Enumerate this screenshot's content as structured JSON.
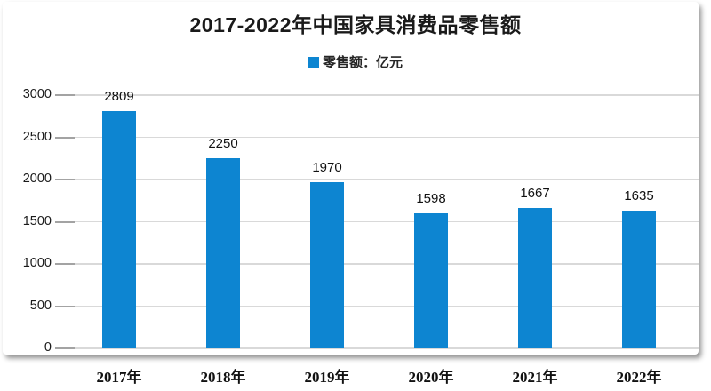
{
  "chart_data": {
    "type": "bar",
    "title": "2017-2022年中国家具消费品零售额",
    "legend_label": "零售额：亿元",
    "legend_position": "top-center",
    "categories": [
      "2017年",
      "2018年",
      "2019年",
      "2020年",
      "2021年",
      "2022年"
    ],
    "values": [
      2809,
      2250,
      1970,
      1598,
      1667,
      1635
    ],
    "ylim": [
      0,
      3000
    ],
    "yticks": [
      0,
      500,
      1000,
      1500,
      2000,
      2500,
      3000
    ],
    "grid": "horizontal",
    "value_labels": "above-bars",
    "colors": {
      "bar": "#0d85d1",
      "gridline": "#d9d9d9",
      "tick": "#a3a3a3",
      "title_text": "#1a1a1a",
      "label_text": "#111111"
    }
  }
}
